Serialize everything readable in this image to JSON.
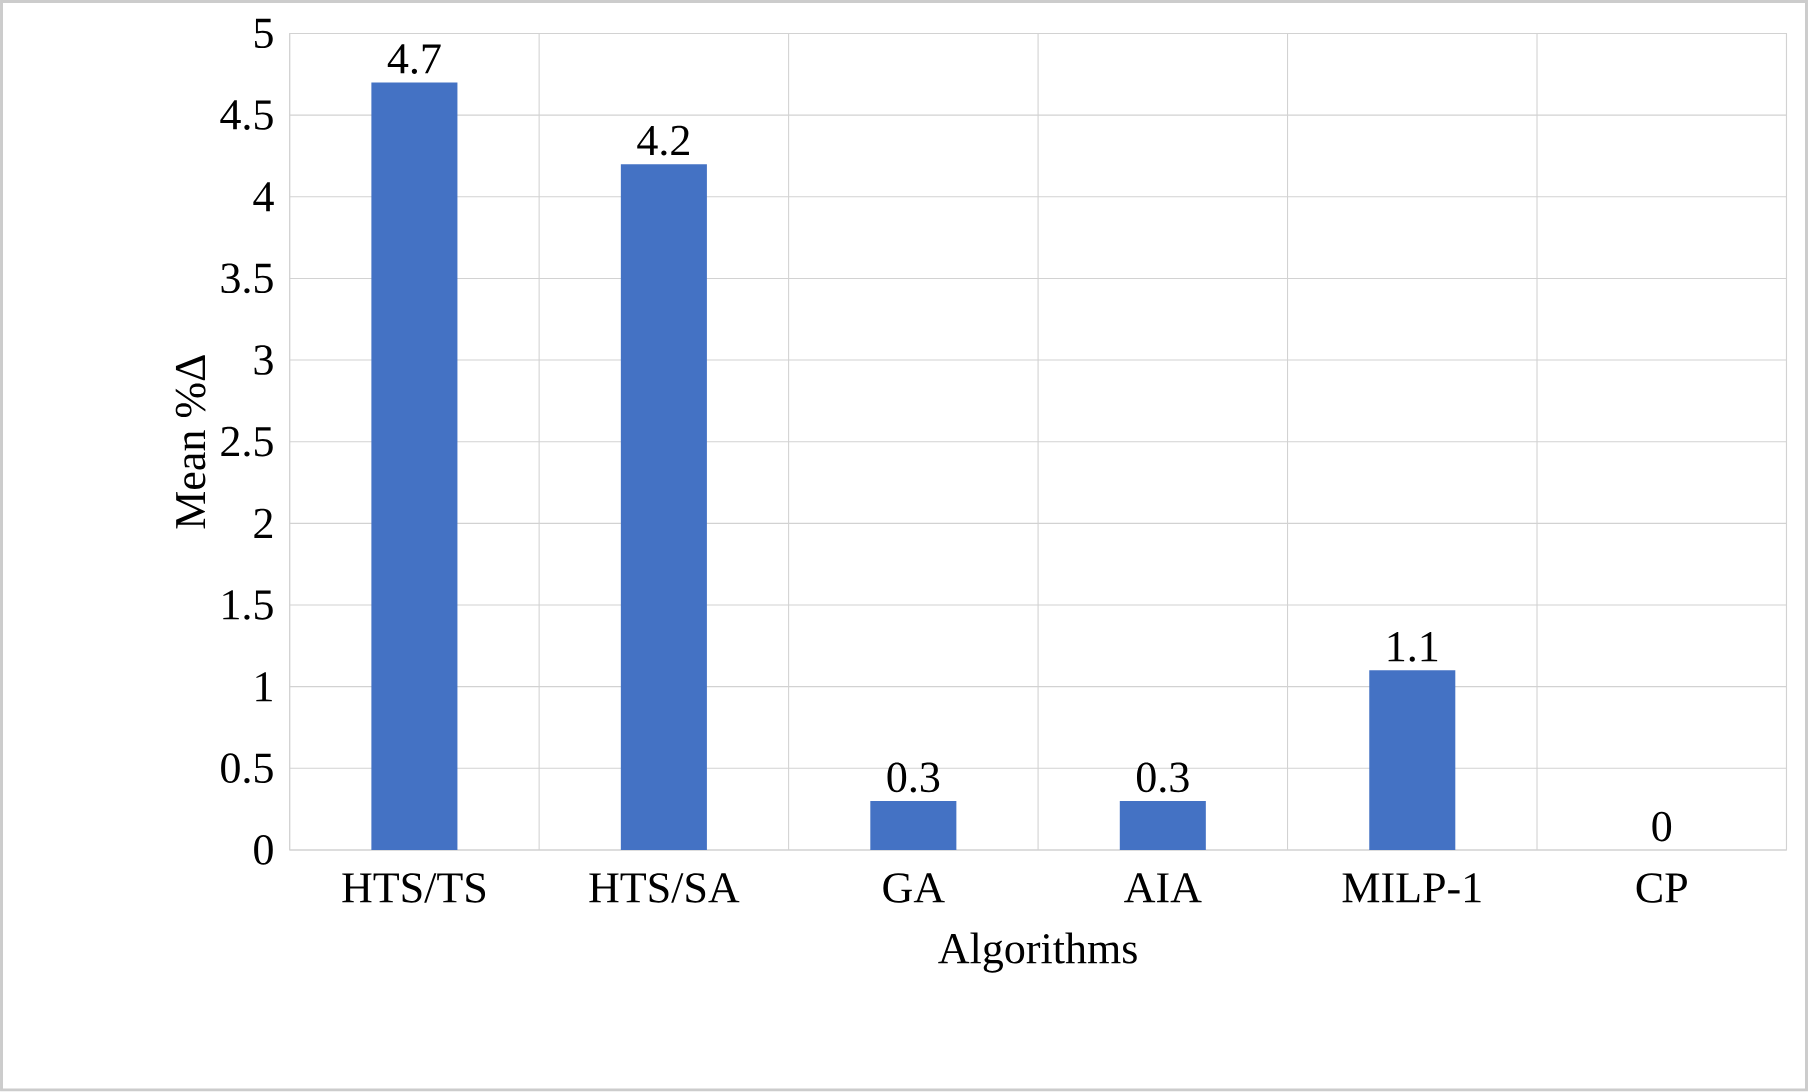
{
  "chart_data": {
    "type": "bar",
    "xlabel": "Algorithms",
    "ylabel": "Mean %Δ",
    "categories": [
      "HTS/TS",
      "HTS/SA",
      "GA",
      "AIA",
      "MILP-1",
      "CP"
    ],
    "values": [
      4.7,
      4.2,
      0.3,
      0.3,
      1.1,
      0
    ],
    "color": "#4472c4",
    "ylim": [
      0,
      5
    ],
    "yticks": [
      0,
      0.5,
      1,
      1.5,
      2,
      2.5,
      3,
      3.5,
      4,
      4.5,
      5
    ],
    "grid": true,
    "data_labels": true
  }
}
